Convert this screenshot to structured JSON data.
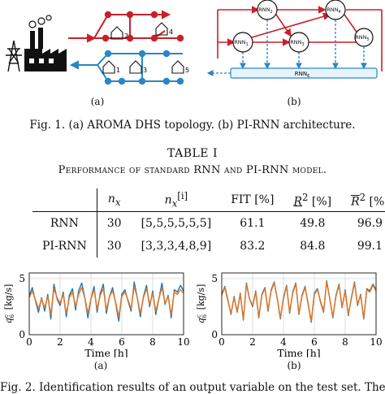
{
  "figure1": {
    "sub_a": "(a)",
    "sub_b": "(b)",
    "topology_houses": [
      "2",
      "4",
      "1",
      "3",
      "5"
    ],
    "rnn_nodes": [
      "RNN",
      "RNN",
      "RNN",
      "RNN",
      "RNN"
    ],
    "rnn_subscripts": [
      "2",
      "4",
      "1",
      "3",
      "5"
    ],
    "rnn_bar": "RNN",
    "rnn_bar_sub": "6",
    "caption": "Fig. 1.   (a) AROMA DHS topology. (b) PI-RNN architecture.",
    "colors": {
      "supply": "#c8202a",
      "return": "#2a86c4",
      "rnn_bar_fill": "#e6f4fb"
    }
  },
  "table": {
    "title": "TABLE I",
    "subtitle": "Performance of standard RNN and PI-RNN model.",
    "headers": [
      "",
      "n",
      "n",
      "FIT [%]",
      "R",
      "[%]",
      "R",
      "[%]"
    ],
    "header_sub_x": "x",
    "header_sup_i": "[i]",
    "header_sup_2": "2",
    "rows": [
      {
        "name": "RNN",
        "nx": "30",
        "nxi": "[5,5,5,5,5,5]",
        "fit": "61.1",
        "r2_low": "49.8",
        "r2_high": "96.9"
      },
      {
        "name": "PI-RNN",
        "nx": "30",
        "nxi": "[3,3,3,4,8,9]",
        "fit": "83.2",
        "r2_low": "84.8",
        "r2_high": "99.1"
      }
    ]
  },
  "figure2": {
    "ylabel": "q",
    "ylabel_sup": "c",
    "ylabel_sub": "6",
    "ylabel_unit": "[kg/s]",
    "xlabel": "Time [h]",
    "sub_a": "(a)",
    "sub_b": "(b)",
    "colors": {
      "measured": "#1f77b4",
      "model": "#e8731a"
    },
    "caption_partial": "Fig. 2.   Identification results of an output variable on the test set. The"
  },
  "chart_data": [
    {
      "type": "line",
      "title": "",
      "xlabel": "Time [h]",
      "ylabel": "q6c [kg/s]",
      "xlim": [
        0,
        10
      ],
      "ylim": [
        0,
        5.5
      ],
      "xticks": [
        0,
        2,
        4,
        6,
        8,
        10
      ],
      "yticks": [
        0,
        5
      ],
      "grid": true,
      "series": [
        {
          "x": [
            0,
            0.2,
            0.4,
            0.6,
            0.8,
            1.0,
            1.2,
            1.4,
            1.6,
            1.8,
            2.0,
            2.2,
            2.4,
            2.6,
            2.8,
            3.0,
            3.2,
            3.4,
            3.6,
            3.8,
            4.0,
            4.2,
            4.4,
            4.6,
            4.8,
            5.0,
            5.2,
            5.4,
            5.6,
            5.8,
            6.0,
            6.2,
            6.4,
            6.6,
            6.8,
            7.0,
            7.2,
            7.4,
            7.6,
            7.8,
            8.0,
            8.2,
            8.4,
            8.6,
            8.8,
            9.0,
            9.2,
            9.4,
            9.6,
            9.8,
            10.0
          ],
          "y": [
            3.5,
            4.2,
            3.0,
            2.0,
            3.3,
            2.1,
            3.6,
            1.4,
            4.5,
            3.2,
            2.6,
            3.8,
            1.6,
            3.5,
            4.1,
            2.2,
            3.9,
            4.6,
            3.3,
            1.5,
            3.2,
            4.3,
            2.0,
            3.7,
            4.5,
            1.9,
            3.4,
            4.2,
            2.8,
            1.2,
            3.6,
            4.0,
            3.0,
            2.1,
            4.7,
            3.3,
            1.6,
            3.4,
            4.4,
            2.5,
            3.9,
            1.8,
            3.2,
            4.6,
            2.7,
            3.5,
            1.5,
            4.0,
            3.8,
            4.4,
            3.9
          ]
        },
        {
          "x": [
            0,
            0.2,
            0.4,
            0.6,
            0.8,
            1.0,
            1.2,
            1.4,
            1.6,
            1.8,
            2.0,
            2.2,
            2.4,
            2.6,
            2.8,
            3.0,
            3.2,
            3.4,
            3.6,
            3.8,
            4.0,
            4.2,
            4.4,
            4.6,
            4.8,
            5.0,
            5.2,
            5.4,
            5.6,
            5.8,
            6.0,
            6.2,
            6.4,
            6.6,
            6.8,
            7.0,
            7.2,
            7.4,
            7.6,
            7.8,
            8.0,
            8.2,
            8.4,
            8.6,
            8.8,
            9.0,
            9.2,
            9.4,
            9.6,
            9.8,
            10.0
          ],
          "y": [
            3.3,
            3.9,
            3.1,
            2.3,
            3.2,
            2.4,
            3.4,
            1.8,
            4.1,
            3.3,
            2.8,
            3.6,
            1.9,
            3.3,
            3.8,
            2.5,
            3.6,
            4.2,
            3.3,
            1.9,
            3.2,
            4.0,
            2.3,
            3.5,
            4.1,
            2.2,
            3.4,
            3.9,
            2.9,
            1.6,
            3.4,
            3.8,
            3.1,
            2.3,
            4.3,
            3.3,
            1.9,
            3.3,
            4.1,
            2.7,
            3.7,
            2.1,
            3.2,
            4.2,
            2.8,
            3.4,
            1.8,
            3.8,
            3.6,
            4.0,
            3.7
          ]
        }
      ]
    },
    {
      "type": "line",
      "title": "",
      "xlabel": "Time [h]",
      "ylabel": "",
      "xlim": [
        0,
        10
      ],
      "ylim": [
        0,
        5.5
      ],
      "xticks": [
        0,
        2,
        4,
        6,
        8,
        10
      ],
      "yticks": [
        0,
        5
      ],
      "grid": true,
      "series": [
        {
          "x": [
            0,
            0.2,
            0.4,
            0.6,
            0.8,
            1.0,
            1.2,
            1.4,
            1.6,
            1.8,
            2.0,
            2.2,
            2.4,
            2.6,
            2.8,
            3.0,
            3.2,
            3.4,
            3.6,
            3.8,
            4.0,
            4.2,
            4.4,
            4.6,
            4.8,
            5.0,
            5.2,
            5.4,
            5.6,
            5.8,
            6.0,
            6.2,
            6.4,
            6.6,
            6.8,
            7.0,
            7.2,
            7.4,
            7.6,
            7.8,
            8.0,
            8.2,
            8.4,
            8.6,
            8.8,
            9.0,
            9.2,
            9.4,
            9.6,
            9.8,
            10.0
          ],
          "y": [
            3.6,
            4.3,
            3.1,
            1.8,
            3.4,
            2.0,
            3.7,
            1.3,
            4.6,
            3.2,
            2.5,
            3.9,
            1.5,
            3.6,
            4.2,
            2.1,
            4.0,
            4.7,
            3.2,
            1.4,
            3.3,
            4.4,
            1.9,
            3.8,
            4.6,
            1.8,
            3.5,
            4.3,
            2.7,
            1.1,
            3.7,
            4.1,
            2.9,
            2.0,
            4.8,
            3.2,
            1.5,
            3.5,
            4.5,
            2.4,
            4.0,
            1.7,
            3.3,
            4.7,
            2.6,
            3.6,
            1.4,
            4.1,
            3.9,
            4.5,
            4.0
          ]
        },
        {
          "x": [
            0,
            0.2,
            0.4,
            0.6,
            0.8,
            1.0,
            1.2,
            1.4,
            1.6,
            1.8,
            2.0,
            2.2,
            2.4,
            2.6,
            2.8,
            3.0,
            3.2,
            3.4,
            3.6,
            3.8,
            4.0,
            4.2,
            4.4,
            4.6,
            4.8,
            5.0,
            5.2,
            5.4,
            5.6,
            5.8,
            6.0,
            6.2,
            6.4,
            6.6,
            6.8,
            7.0,
            7.2,
            7.4,
            7.6,
            7.8,
            8.0,
            8.2,
            8.4,
            8.6,
            8.8,
            9.0,
            9.2,
            9.4,
            9.6,
            9.8,
            10.0
          ],
          "y": [
            3.5,
            4.2,
            3.0,
            1.9,
            3.3,
            2.1,
            3.6,
            1.4,
            4.5,
            3.2,
            2.6,
            3.8,
            1.6,
            3.5,
            4.1,
            2.2,
            3.9,
            4.6,
            3.2,
            1.5,
            3.2,
            4.3,
            2.0,
            3.7,
            4.5,
            1.9,
            3.4,
            4.2,
            2.8,
            1.2,
            3.6,
            4.0,
            3.0,
            2.1,
            4.7,
            3.2,
            1.6,
            3.4,
            4.4,
            2.5,
            3.9,
            1.8,
            3.2,
            4.6,
            2.7,
            3.5,
            1.5,
            4.0,
            3.8,
            4.4,
            3.9
          ]
        }
      ]
    }
  ]
}
